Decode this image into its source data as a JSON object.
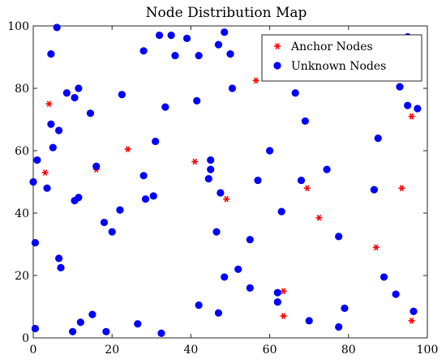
{
  "chart_data": {
    "type": "scatter",
    "title": "Node Distribution Map",
    "xlabel": "",
    "ylabel": "",
    "xlim": [
      0,
      100
    ],
    "ylim": [
      0,
      100
    ],
    "x_ticks": [
      "0",
      "20",
      "40",
      "60",
      "80",
      "100"
    ],
    "y_ticks": [
      "0",
      "20",
      "40",
      "60",
      "80",
      "100"
    ],
    "grid": false,
    "legend_position": "top-right",
    "series": [
      {
        "name": "Anchor Nodes",
        "marker": "star",
        "color": "#ff0000",
        "points": [
          [
            4,
            75
          ],
          [
            3,
            53
          ],
          [
            16,
            54
          ],
          [
            24,
            60.5
          ],
          [
            41,
            56.5
          ],
          [
            49,
            44.5
          ],
          [
            56.5,
            82.5
          ],
          [
            63.5,
            15
          ],
          [
            63.5,
            7
          ],
          [
            69.5,
            48
          ],
          [
            72.5,
            38.5
          ],
          [
            87,
            29
          ],
          [
            93.5,
            48
          ],
          [
            96,
            71
          ],
          [
            96,
            5.5
          ]
        ]
      },
      {
        "name": "Unknown Nodes",
        "marker": "circle",
        "color": "#0000ff",
        "points": [
          [
            6,
            99.5
          ],
          [
            4.5,
            91
          ],
          [
            28,
            92
          ],
          [
            32,
            97
          ],
          [
            35,
            97
          ],
          [
            39,
            96
          ],
          [
            36,
            90.5
          ],
          [
            47,
            94
          ],
          [
            48.5,
            98
          ],
          [
            42,
            90.5
          ],
          [
            50,
            91
          ],
          [
            50.5,
            80
          ],
          [
            41.5,
            76
          ],
          [
            33.5,
            74
          ],
          [
            22.5,
            78
          ],
          [
            14.5,
            72
          ],
          [
            11.5,
            80
          ],
          [
            10.5,
            77
          ],
          [
            8.5,
            78.5
          ],
          [
            4.5,
            68.5
          ],
          [
            6.5,
            66.5
          ],
          [
            5,
            61
          ],
          [
            1,
            57
          ],
          [
            0,
            50
          ],
          [
            3.5,
            48
          ],
          [
            16,
            55
          ],
          [
            10.5,
            44
          ],
          [
            11.5,
            45
          ],
          [
            28,
            52
          ],
          [
            31,
            63
          ],
          [
            45,
            57
          ],
          [
            45,
            54
          ],
          [
            44.5,
            51
          ],
          [
            47.5,
            46.5
          ],
          [
            57,
            50.5
          ],
          [
            60,
            60
          ],
          [
            66.5,
            78.5
          ],
          [
            69,
            69.5
          ],
          [
            68,
            50.5
          ],
          [
            74.5,
            54
          ],
          [
            63,
            40.5
          ],
          [
            46.5,
            34
          ],
          [
            55,
            31.5
          ],
          [
            52,
            22
          ],
          [
            48.5,
            19.5
          ],
          [
            55,
            16
          ],
          [
            62,
            14.5
          ],
          [
            62,
            11.5
          ],
          [
            47,
            8
          ],
          [
            42,
            10.5
          ],
          [
            70,
            5.5
          ],
          [
            77.5,
            3.5
          ],
          [
            79,
            9.5
          ],
          [
            77.5,
            32.5
          ],
          [
            86.5,
            47.5
          ],
          [
            87.5,
            64
          ],
          [
            89,
            19.5
          ],
          [
            92,
            14
          ],
          [
            93,
            80.5
          ],
          [
            95,
            74.5
          ],
          [
            95,
            96.5
          ],
          [
            97.5,
            73.5
          ],
          [
            96.5,
            8.5
          ],
          [
            18,
            37
          ],
          [
            20,
            34
          ],
          [
            22,
            41
          ],
          [
            28.5,
            44.5
          ],
          [
            30.5,
            45.5
          ],
          [
            0.5,
            30.5
          ],
          [
            6.5,
            25.5
          ],
          [
            7,
            22.5
          ],
          [
            12,
            5
          ],
          [
            15,
            7.5
          ],
          [
            10,
            2
          ],
          [
            18.5,
            2
          ],
          [
            26.5,
            4.5
          ],
          [
            32.5,
            1.5
          ],
          [
            0.5,
            3
          ]
        ]
      }
    ]
  }
}
